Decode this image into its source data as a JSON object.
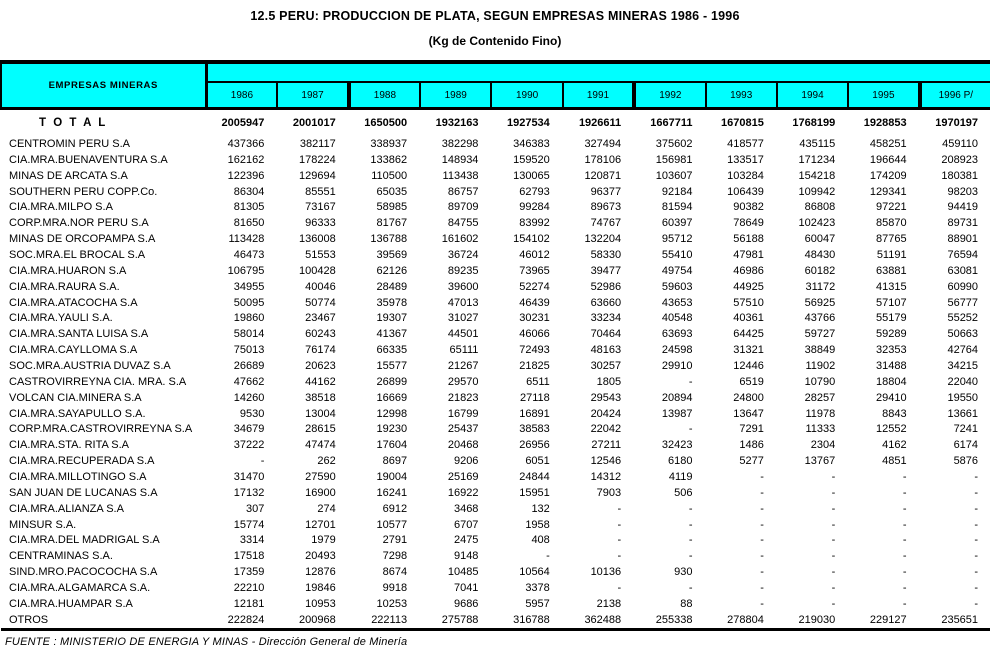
{
  "title": "12.5 PERU: PRODUCCION DE PLATA, SEGUN EMPRESAS MINERAS 1986 - 1996",
  "subtitle": "(Kg de Contenido Fino)",
  "colors": {
    "header_fill": "#00ffff",
    "text": "#000000",
    "background": "#ffffff"
  },
  "table": {
    "corner_label": "EMPRESAS MINERAS",
    "years": [
      "1986",
      "1987",
      "1988",
      "1989",
      "1990",
      "1991",
      "1992",
      "1993",
      "1994",
      "1995",
      "1996   P/"
    ],
    "total": {
      "label": "T O T A L",
      "values": [
        "2005947",
        "2001017",
        "1650500",
        "1932163",
        "1927534",
        "1926611",
        "1667711",
        "1670815",
        "1768199",
        "1928853",
        "1970197"
      ]
    },
    "rows": [
      {
        "name": "CENTROMIN PERU S.A",
        "values": [
          "437366",
          "382117",
          "338937",
          "382298",
          "346383",
          "327494",
          "375602",
          "418577",
          "435115",
          "458251",
          "459110"
        ]
      },
      {
        "name": "CIA.MRA.BUENAVENTURA  S.A",
        "values": [
          "162162",
          "178224",
          "133862",
          "148934",
          "159520",
          "178106",
          "156981",
          "133517",
          "171234",
          "196644",
          "208923"
        ]
      },
      {
        "name": "MINAS DE ARCATA  S.A",
        "values": [
          "122396",
          "129694",
          "110500",
          "113438",
          "130065",
          "120871",
          "103607",
          "103284",
          "154218",
          "174209",
          "180381"
        ]
      },
      {
        "name": "SOUTHERN PERU COPP.Co.",
        "values": [
          "86304",
          "85551",
          "65035",
          "86757",
          "62793",
          "96377",
          "92184",
          "106439",
          "109942",
          "129341",
          "98203"
        ]
      },
      {
        "name": "CIA.MRA.MILPO  S.A",
        "values": [
          "81305",
          "73167",
          "58985",
          "89709",
          "99284",
          "89673",
          "81594",
          "90382",
          "86808",
          "97221",
          "94419"
        ]
      },
      {
        "name": "CORP.MRA.NOR PERU  S.A",
        "values": [
          "81650",
          "96333",
          "81767",
          "84755",
          "83992",
          "74767",
          "60397",
          "78649",
          "102423",
          "85870",
          "89731"
        ]
      },
      {
        "name": "MINAS DE ORCOPAMPA S.A",
        "values": [
          "113428",
          "136008",
          "136788",
          "161602",
          "154102",
          "132204",
          "95712",
          "56188",
          "60047",
          "87765",
          "88901"
        ]
      },
      {
        "name": "SOC.MRA.EL BROCAL  S.A",
        "values": [
          "46473",
          "51553",
          "39569",
          "36724",
          "46012",
          "58330",
          "55410",
          "47981",
          "48430",
          "51191",
          "76594"
        ]
      },
      {
        "name": "CIA.MRA.HUARON  S.A",
        "values": [
          "106795",
          "100428",
          "62126",
          "89235",
          "73965",
          "39477",
          "49754",
          "46986",
          "60182",
          "63881",
          "63081"
        ]
      },
      {
        "name": "CIA.MRA.RAURA S.A.",
        "values": [
          "34955",
          "40046",
          "28489",
          "39600",
          "52274",
          "52986",
          "59603",
          "44925",
          "31172",
          "41315",
          "60990"
        ]
      },
      {
        "name": "CIA.MRA.ATACOCHA  S.A",
        "values": [
          "50095",
          "50774",
          "35978",
          "47013",
          "46439",
          "63660",
          "43653",
          "57510",
          "56925",
          "57107",
          "56777"
        ]
      },
      {
        "name": "CIA.MRA.YAULI S.A.",
        "values": [
          "19860",
          "23467",
          "19307",
          "31027",
          "30231",
          "33234",
          "40548",
          "40361",
          "43766",
          "55179",
          "55252"
        ]
      },
      {
        "name": "CIA.MRA.SANTA LUISA  S.A",
        "values": [
          "58014",
          "60243",
          "41367",
          "44501",
          "46066",
          "70464",
          "63693",
          "64425",
          "59727",
          "59289",
          "50663"
        ]
      },
      {
        "name": "CIA.MRA.CAYLLOMA S.A",
        "values": [
          "75013",
          "76174",
          "66335",
          "65111",
          "72493",
          "48163",
          "24598",
          "31321",
          "38849",
          "32353",
          "42764"
        ]
      },
      {
        "name": "SOC.MRA.AUSTRIA DUVAZ  S.A",
        "values": [
          "26689",
          "20623",
          "15577",
          "21267",
          "21825",
          "30257",
          "29910",
          "12446",
          "11902",
          "31488",
          "34215"
        ]
      },
      {
        "name": "CASTROVIRREYNA  CIA. MRA. S.A",
        "values": [
          "47662",
          "44162",
          "26899",
          "29570",
          "6511",
          "1805",
          "-",
          "6519",
          "10790",
          "18804",
          "22040"
        ]
      },
      {
        "name": "VOLCAN CIA.MINERA  S.A",
        "values": [
          "14260",
          "38518",
          "16669",
          "21823",
          "27118",
          "29543",
          "20894",
          "24800",
          "28257",
          "29410",
          "19550"
        ]
      },
      {
        "name": "CIA.MRA.SAYAPULLO S.A.",
        "values": [
          "9530",
          "13004",
          "12998",
          "16799",
          "16891",
          "20424",
          "13987",
          "13647",
          "11978",
          "8843",
          "13661"
        ]
      },
      {
        "name": "CORP.MRA.CASTROVIRREYNA  S.A",
        "values": [
          "34679",
          "28615",
          "19230",
          "25437",
          "38583",
          "22042",
          "-",
          "7291",
          "11333",
          "12552",
          "7241"
        ]
      },
      {
        "name": "CIA.MRA.STA. RITA  S.A",
        "values": [
          "37222",
          "47474",
          "17604",
          "20468",
          "26956",
          "27211",
          "32423",
          "1486",
          "2304",
          "4162",
          "6174"
        ]
      },
      {
        "name": "CIA.MRA.RECUPERADA  S.A",
        "values": [
          "-",
          "262",
          "8697",
          "9206",
          "6051",
          "12546",
          "6180",
          "5277",
          "13767",
          "4851",
          "5876"
        ]
      },
      {
        "name": "CIA.MRA.MILLOTINGO  S.A",
        "values": [
          "31470",
          "27590",
          "19004",
          "25169",
          "24844",
          "14312",
          "4119",
          "-",
          "-",
          "-",
          "-"
        ]
      },
      {
        "name": "SAN JUAN DE LUCANAS S.A",
        "values": [
          "17132",
          "16900",
          "16241",
          "16922",
          "15951",
          "7903",
          "506",
          "-",
          "-",
          "-",
          "-"
        ]
      },
      {
        "name": "CIA.MRA.ALIANZA  S.A",
        "values": [
          "307",
          "274",
          "6912",
          "3468",
          "132",
          "-",
          "-",
          "-",
          "-",
          "-",
          "-"
        ]
      },
      {
        "name": "MINSUR S.A.",
        "values": [
          "15774",
          "12701",
          "10577",
          "6707",
          "1958",
          "-",
          "-",
          "-",
          "-",
          "-",
          "-"
        ]
      },
      {
        "name": "CIA.MRA.DEL MADRIGAL  S.A",
        "values": [
          "3314",
          "1979",
          "2791",
          "2475",
          "408",
          "-",
          "-",
          "-",
          "-",
          "-",
          "-"
        ]
      },
      {
        "name": "CENTRAMINAS S.A.",
        "values": [
          "17518",
          "20493",
          "7298",
          "9148",
          "-",
          "-",
          "-",
          "-",
          "-",
          "-",
          "-"
        ]
      },
      {
        "name": "SIND.MRO.PACOCOCHA  S.A",
        "values": [
          "17359",
          "12876",
          "8674",
          "10485",
          "10564",
          "10136",
          "930",
          "-",
          "-",
          "-",
          "-"
        ]
      },
      {
        "name": "CIA.MRA.ALGAMARCA S.A.",
        "values": [
          "22210",
          "19846",
          "9918",
          "7041",
          "3378",
          "-",
          "-",
          "-",
          "-",
          "-",
          "-"
        ]
      },
      {
        "name": "CIA.MRA.HUAMPAR  S.A",
        "values": [
          "12181",
          "10953",
          "10253",
          "9686",
          "5957",
          "2138",
          "88",
          "-",
          "-",
          "-",
          "-"
        ]
      },
      {
        "name": "OTROS",
        "values": [
          "222824",
          "200968",
          "222113",
          "275788",
          "316788",
          "362488",
          "255338",
          "278804",
          "219030",
          "229127",
          "235651"
        ]
      }
    ]
  },
  "footer": "FUENTE : MINISTERIO DE ENERGIA Y MINAS  - Dirección General de Minería"
}
